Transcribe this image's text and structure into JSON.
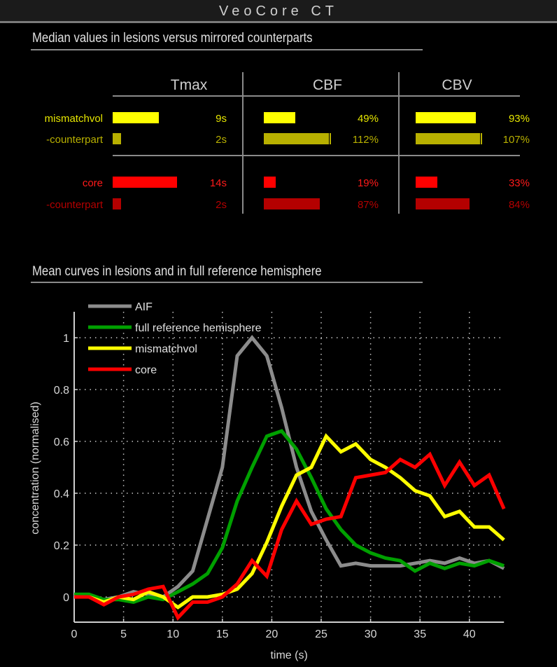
{
  "window": {
    "title": "VeoCore  CT"
  },
  "table_section": {
    "title": "Median values in lesions versus mirrored counterparts",
    "columns": [
      "Tmax",
      "CBF",
      "CBV"
    ],
    "rows": [
      {
        "label": "mismatchvol",
        "color": "#ffff00",
        "text_color": "#e6e600",
        "values": [
          "9s",
          "49%",
          "93%"
        ],
        "bar_lengths": [
          66,
          45,
          86
        ],
        "tick": [
          false,
          false,
          false
        ]
      },
      {
        "label": "-counterpart",
        "color": "#b8b000",
        "text_color": "#b8b000",
        "values": [
          "2s",
          "112%",
          "107%"
        ],
        "bar_lengths": [
          12,
          93,
          92
        ],
        "tick": [
          false,
          true,
          true
        ]
      },
      {
        "label": "core",
        "color": "#ff0000",
        "text_color": "#ff1a1a",
        "values": [
          "14s",
          "19%",
          "33%"
        ],
        "bar_lengths": [
          92,
          17,
          31
        ],
        "tick": [
          false,
          false,
          false
        ]
      },
      {
        "label": "-counterpart",
        "color": "#b40000",
        "text_color": "#b40000",
        "values": [
          "2s",
          "87%",
          "84%"
        ],
        "bar_lengths": [
          12,
          80,
          77
        ],
        "tick": [
          false,
          false,
          false
        ]
      }
    ]
  },
  "chart_section": {
    "title": "Mean curves in lesions and in full reference hemisphere"
  },
  "chart_data": {
    "type": "line",
    "title": "Mean curves in lesions and in full reference hemisphere",
    "xlabel": "time (s)",
    "ylabel": "concentration (normalised)",
    "xlim": [
      0,
      43.5
    ],
    "ylim": [
      -0.1,
      1.1
    ],
    "xticks": [
      0,
      5,
      10,
      15,
      20,
      25,
      30,
      35,
      40
    ],
    "yticks": [
      0,
      0.2,
      0.4,
      0.6,
      0.8,
      1
    ],
    "ytick_labels": [
      "0",
      "0.2",
      "0.4",
      "0.6",
      "0.8",
      "1"
    ],
    "grid": true,
    "legend_position": "upper left",
    "x": [
      0,
      1.5,
      3,
      4.5,
      6,
      7.5,
      9,
      10.5,
      12,
      13.5,
      15,
      16.5,
      18,
      19.5,
      21,
      22.5,
      24,
      25.5,
      27,
      28.5,
      30,
      31.5,
      33,
      34.5,
      36,
      37.5,
      39,
      40.5,
      42,
      43.5
    ],
    "series": [
      {
        "name": "AIF",
        "color": "#8c8c8c",
        "values": [
          0.01,
          0.0,
          -0.01,
          0.0,
          0.02,
          0.01,
          0.0,
          0.04,
          0.1,
          0.3,
          0.5,
          0.93,
          1.0,
          0.93,
          0.73,
          0.5,
          0.33,
          0.22,
          0.12,
          0.13,
          0.12,
          0.12,
          0.12,
          0.13,
          0.14,
          0.13,
          0.15,
          0.13,
          0.14,
          0.11
        ]
      },
      {
        "name": "full reference hemisphere",
        "color": "#00a000",
        "values": [
          0.01,
          0.01,
          -0.01,
          -0.01,
          -0.02,
          0.0,
          -0.01,
          0.02,
          0.05,
          0.09,
          0.19,
          0.37,
          0.5,
          0.62,
          0.64,
          0.57,
          0.46,
          0.34,
          0.26,
          0.2,
          0.17,
          0.15,
          0.14,
          0.1,
          0.13,
          0.11,
          0.13,
          0.12,
          0.14,
          0.12
        ]
      },
      {
        "name": "mismatchvol",
        "color": "#ffff00",
        "values": [
          0.0,
          0.0,
          -0.02,
          0.0,
          -0.01,
          0.02,
          0.0,
          -0.04,
          0.0,
          0.0,
          0.01,
          0.03,
          0.09,
          0.21,
          0.35,
          0.47,
          0.5,
          0.62,
          0.56,
          0.59,
          0.53,
          0.5,
          0.46,
          0.41,
          0.39,
          0.31,
          0.33,
          0.27,
          0.27,
          0.22
        ]
      },
      {
        "name": "core",
        "color": "#ff0000",
        "values": [
          0.0,
          0.0,
          -0.03,
          0.0,
          0.01,
          0.03,
          0.04,
          -0.08,
          -0.02,
          -0.02,
          0.0,
          0.05,
          0.14,
          0.08,
          0.26,
          0.37,
          0.28,
          0.3,
          0.31,
          0.46,
          0.47,
          0.48,
          0.53,
          0.5,
          0.55,
          0.43,
          0.52,
          0.43,
          0.47,
          0.34
        ]
      }
    ]
  }
}
